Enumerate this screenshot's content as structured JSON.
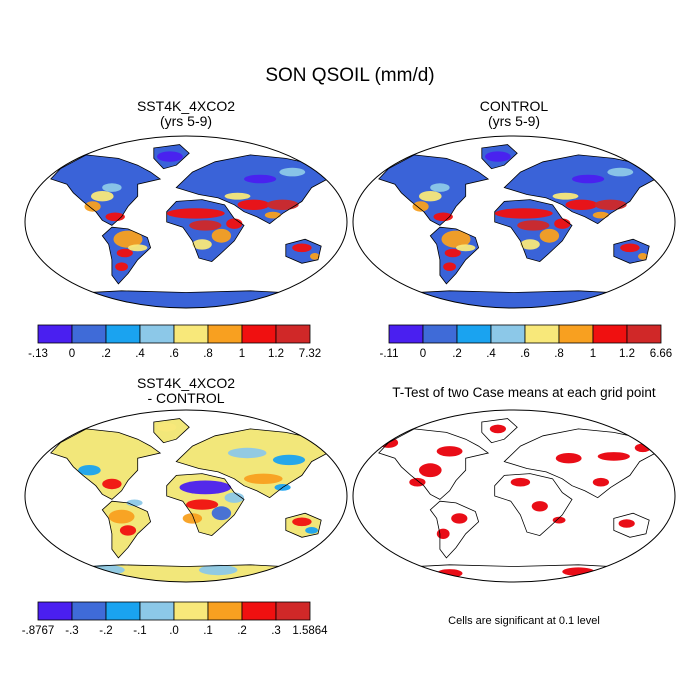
{
  "title": "SON QSOIL (mm/d)",
  "colors": {
    "ocean": "#ffffff",
    "outline": "#000000",
    "sig": "#e8000b",
    "base_land": "#3a63d8",
    "diff_land": "#f2e77a"
  },
  "panels": [
    {
      "id": "tl",
      "title": [
        "SST4K_4XCO2",
        "(yrs 5-9)"
      ],
      "type": "field",
      "colorbar": {
        "colors": [
          "#4a1ff0",
          "#3f6bd8",
          "#1aa3f0",
          "#8cc8e8",
          "#f8e87a",
          "#f8a020",
          "#f01010",
          "#d02828"
        ],
        "labels": [
          "-.13",
          "0",
          ".2",
          ".4",
          ".6",
          ".8",
          "1",
          "1.2",
          "7.32"
        ]
      }
    },
    {
      "id": "tr",
      "title": [
        "CONTROL",
        "(yrs 5-9)"
      ],
      "type": "field",
      "colorbar": {
        "colors": [
          "#4a1ff0",
          "#3f6bd8",
          "#1aa3f0",
          "#8cc8e8",
          "#f8e87a",
          "#f8a020",
          "#f01010",
          "#d02828"
        ],
        "labels": [
          "-.11",
          "0",
          ".2",
          ".4",
          ".6",
          ".8",
          "1",
          "1.2",
          "6.66"
        ]
      }
    },
    {
      "id": "bl",
      "title": [
        "SST4K_4XCO2",
        "- CONTROL"
      ],
      "type": "diff",
      "colorbar": {
        "colors": [
          "#4a1ff0",
          "#3f6bd8",
          "#1aa3f0",
          "#8cc8e8",
          "#f8e87a",
          "#f8a020",
          "#f01010",
          "#d02828"
        ],
        "labels": [
          "-.8767",
          "-.3",
          "-.2",
          "-.1",
          ".0",
          ".1",
          ".2",
          ".3",
          "1.5864"
        ]
      }
    },
    {
      "id": "br",
      "title": [
        "T-Test of two Case means at each grid point"
      ],
      "type": "ttest",
      "note": "Cells are significant at 0.1 level"
    }
  ]
}
